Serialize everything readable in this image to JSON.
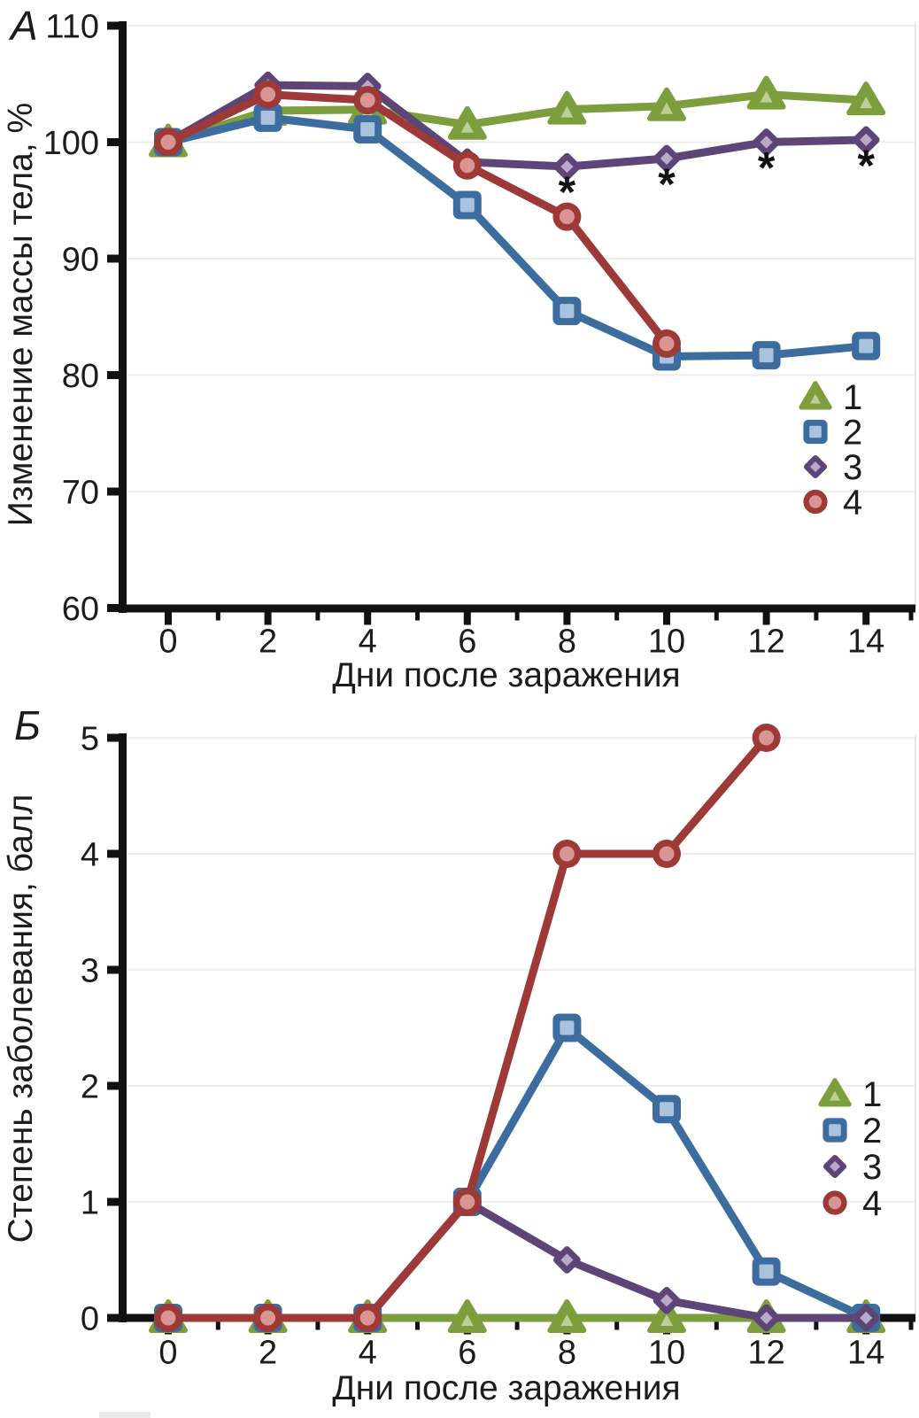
{
  "chart_data": [
    {
      "type": "line",
      "panel_label": "А",
      "xlabel": "Дни после заражения",
      "ylabel": "Изменение массы тела, %",
      "xticks": [
        0,
        2,
        4,
        6,
        8,
        10,
        12,
        14
      ],
      "yticks": [
        60,
        70,
        80,
        90,
        100,
        110
      ],
      "ylim": [
        60,
        110
      ],
      "xlim": [
        0,
        15
      ],
      "grid": true,
      "legend_position": "inside-right",
      "series": [
        {
          "name": "1",
          "marker": "triangle",
          "color": "#7d9e3d",
          "fill": "#bccf97",
          "x": [
            0,
            2,
            4,
            6,
            8,
            10,
            12,
            14
          ],
          "values": [
            100,
            102.7,
            102.8,
            101.5,
            102.8,
            103.1,
            104.1,
            103.6
          ]
        },
        {
          "name": "2",
          "marker": "square",
          "color": "#3d6d9e",
          "fill": "#a9c3de",
          "x": [
            0,
            2,
            4,
            6,
            8,
            10,
            12,
            14
          ],
          "values": [
            100,
            102.1,
            101.1,
            94.6,
            85.5,
            81.6,
            81.7,
            82.5
          ]
        },
        {
          "name": "3",
          "marker": "diamond",
          "color": "#5d4577",
          "fill": "#b9aacb",
          "x": [
            0,
            2,
            4,
            6,
            8,
            10,
            12,
            14
          ],
          "values": [
            100,
            104.9,
            104.8,
            98.3,
            97.9,
            98.6,
            100,
            100.2
          ]
        },
        {
          "name": "4",
          "marker": "circle",
          "color": "#9d3936",
          "fill": "#d99593",
          "x": [
            0,
            2,
            4,
            6,
            8,
            10
          ],
          "values": [
            100,
            104.1,
            103.6,
            98,
            93.6,
            82.7
          ]
        }
      ],
      "annotations": {
        "symbol": "*",
        "series": "3",
        "days": [
          8,
          10,
          12,
          14
        ]
      }
    },
    {
      "type": "line",
      "panel_label": "Б",
      "xlabel": "Дни после заражения",
      "ylabel": "Степень заболевания, балл",
      "xticks": [
        0,
        2,
        4,
        6,
        8,
        10,
        12,
        14
      ],
      "yticks": [
        0,
        1,
        2,
        3,
        4,
        5
      ],
      "ylim": [
        0,
        5
      ],
      "xlim": [
        0,
        15
      ],
      "grid": true,
      "legend_position": "inside-right",
      "series": [
        {
          "name": "1",
          "marker": "triangle",
          "color": "#7d9e3d",
          "fill": "#bccf97",
          "x": [
            0,
            2,
            4,
            6,
            8,
            10,
            12,
            14
          ],
          "values": [
            0,
            0,
            0,
            0,
            0,
            0,
            0,
            0
          ]
        },
        {
          "name": "2",
          "marker": "square",
          "color": "#3d6d9e",
          "fill": "#a9c3de",
          "x": [
            0,
            2,
            4,
            6,
            8,
            10,
            12,
            14
          ],
          "values": [
            0,
            0,
            0,
            1,
            2.5,
            1.8,
            0.4,
            0
          ]
        },
        {
          "name": "3",
          "marker": "diamond",
          "color": "#5d4577",
          "fill": "#b9aacb",
          "x": [
            0,
            2,
            4,
            6,
            8,
            10,
            12,
            14
          ],
          "values": [
            0,
            0,
            0,
            1,
            0.5,
            0.15,
            0,
            0
          ]
        },
        {
          "name": "4",
          "marker": "circle",
          "color": "#9d3936",
          "fill": "#d99593",
          "x": [
            0,
            2,
            4,
            6,
            8,
            10,
            12
          ],
          "values": [
            0,
            0,
            0,
            1,
            4,
            4,
            5
          ]
        }
      ],
      "annotations": null
    }
  ],
  "colors": {
    "axis": "#111111",
    "grid": "#ededed",
    "right_border": "#e7e7e7",
    "text": "#1c1c1c"
  }
}
